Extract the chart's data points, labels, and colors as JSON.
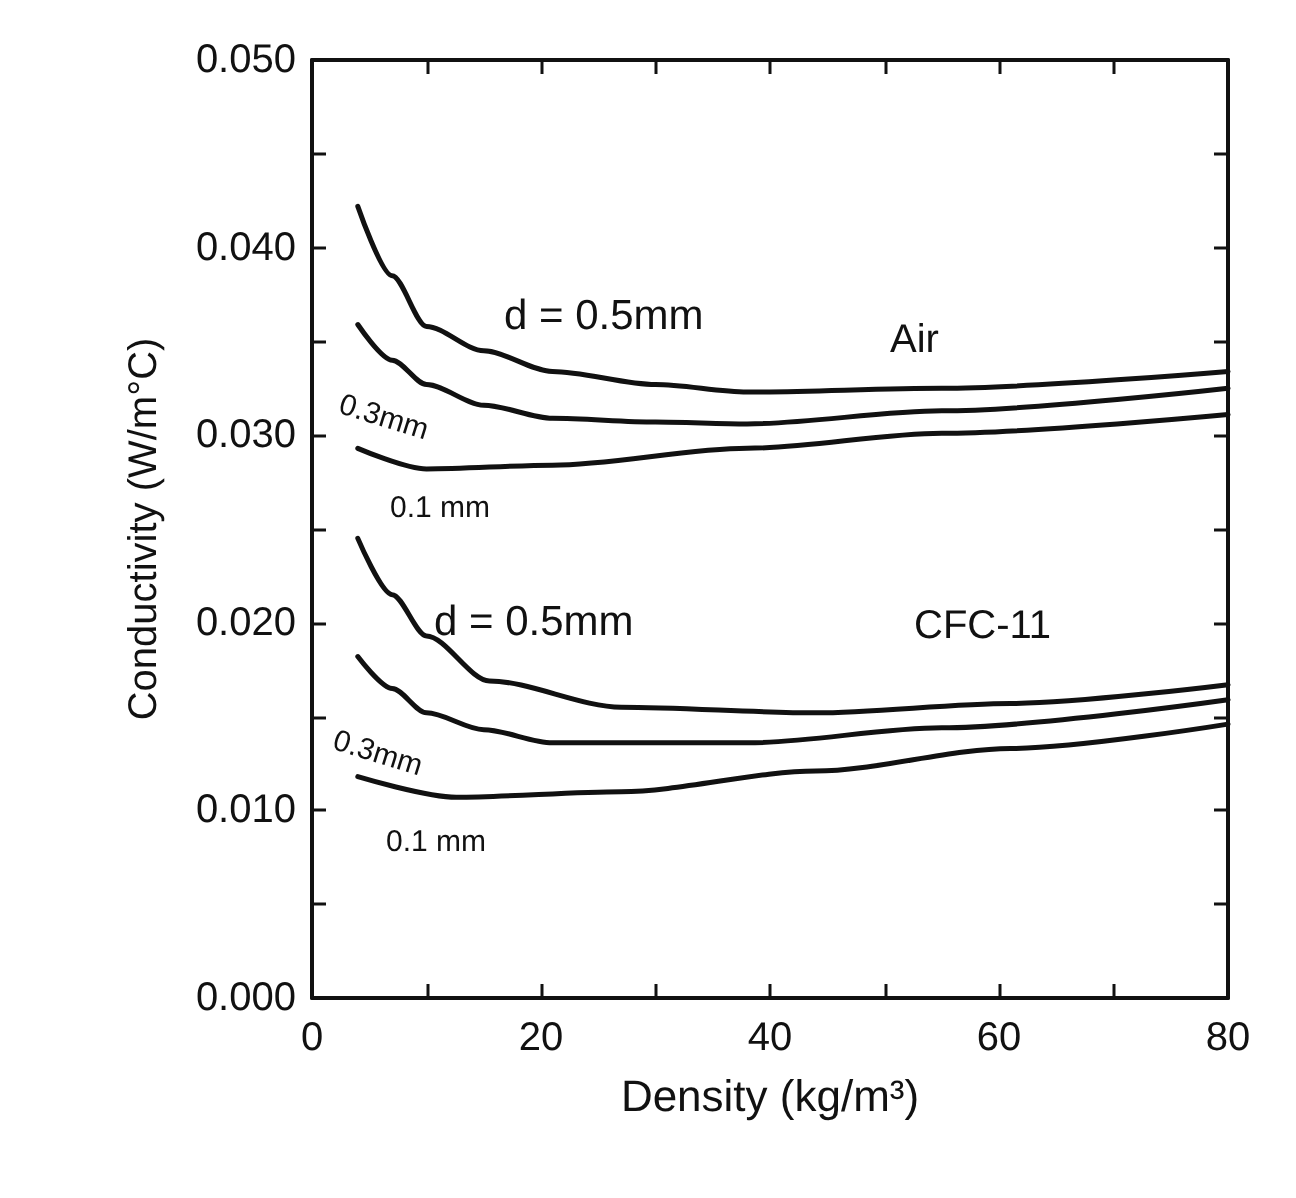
{
  "chart_data": {
    "type": "line",
    "xlabel": "Density (kg/m³)",
    "ylabel": "Conductivity (W/m°C)",
    "xlim": [
      0,
      80
    ],
    "xticks": [
      0,
      {
        "value": 10,
        "label": null
      },
      20,
      {
        "value": 30,
        "label": null
      },
      40,
      {
        "value": 50,
        "label": null
      },
      60,
      {
        "value": 70,
        "label": null
      },
      80
    ],
    "ylim": [
      0,
      0.05
    ],
    "yticks": [
      {
        "value": 0,
        "label": "0.000"
      },
      {
        "value": 0.005,
        "label": null
      },
      {
        "value": 0.01,
        "label": "0.010"
      },
      {
        "value": 0.015,
        "label": null
      },
      {
        "value": 0.02,
        "label": "0.020"
      },
      {
        "value": 0.025,
        "label": null
      },
      {
        "value": 0.03,
        "label": "0.030"
      },
      {
        "value": 0.035,
        "label": null
      },
      {
        "value": 0.04,
        "label": "0.040"
      },
      {
        "value": 0.045,
        "label": null
      },
      {
        "value": 0.05,
        "label": "0.050"
      }
    ],
    "marker": "none",
    "line_style": "solid",
    "series": [
      {
        "color": "#111111",
        "x": [
          4,
          7,
          10,
          15,
          21,
          30,
          38,
          55,
          80
        ],
        "values": [
          0.0422,
          0.0385,
          0.0358,
          0.0345,
          0.0334,
          0.0327,
          0.0323,
          0.0325,
          0.0334
        ]
      },
      {
        "color": "#111111",
        "x": [
          4,
          7,
          10,
          15,
          21,
          30,
          38,
          55,
          80
        ],
        "values": [
          0.0359,
          0.034,
          0.0327,
          0.0316,
          0.0309,
          0.0307,
          0.0306,
          0.0313,
          0.0325
        ]
      },
      {
        "color": "#111111",
        "x": [
          4,
          10,
          21,
          38,
          55,
          80
        ],
        "values": [
          0.0293,
          0.0282,
          0.0284,
          0.0293,
          0.0301,
          0.0311
        ]
      },
      {
        "color": "#111111",
        "x": [
          4,
          7,
          10,
          15.5,
          27,
          44,
          61,
          80
        ],
        "values": [
          0.0245,
          0.0215,
          0.0193,
          0.0169,
          0.0155,
          0.0152,
          0.0157,
          0.0167
        ]
      },
      {
        "color": "#111111",
        "x": [
          4,
          7,
          10,
          15,
          21,
          38,
          55,
          80
        ],
        "values": [
          0.0182,
          0.0165,
          0.0152,
          0.0143,
          0.0136,
          0.0136,
          0.0144,
          0.0159
        ]
      },
      {
        "color": "#111111",
        "x": [
          4,
          12.6,
          27,
          44,
          61,
          80
        ],
        "values": [
          0.0118,
          0.0107,
          0.011,
          0.0121,
          0.0133,
          0.0146
        ]
      }
    ],
    "annotations": [
      "d = 0.5mm",
      "Air",
      "0.3mm",
      "0.1 mm",
      "d = 0.5mm",
      "CFC-11",
      "0.3mm",
      "0.1 mm"
    ]
  }
}
